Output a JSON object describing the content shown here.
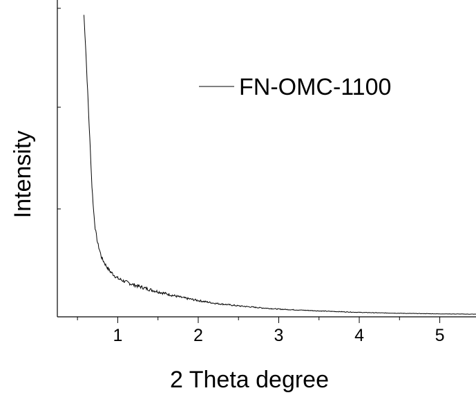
{
  "chart_data": {
    "type": "line",
    "xlabel": "2 Theta degree",
    "ylabel": "Intensity",
    "xlim": [
      0.25,
      5.45
    ],
    "ylim": [
      0,
      1
    ],
    "x_ticks": [
      1,
      2,
      3,
      4,
      5
    ],
    "x_minor_ticks": [
      0.5,
      1.5,
      2.5,
      3.5,
      4.5
    ],
    "y_tick_labels_shown": false,
    "grid": false,
    "legend_position": "top-right",
    "series": [
      {
        "name": "FN-OMC-1100",
        "color": "#000000",
        "x": [
          0.58,
          0.6,
          0.62,
          0.64,
          0.66,
          0.68,
          0.7,
          0.72,
          0.75,
          0.78,
          0.8,
          0.85,
          0.9,
          0.95,
          1.0,
          1.1,
          1.2,
          1.3,
          1.4,
          1.5,
          1.6,
          1.8,
          2.0,
          2.2,
          2.5,
          2.8,
          3.0,
          3.5,
          4.0,
          4.5,
          5.0,
          5.45
        ],
        "y": [
          1.02,
          0.92,
          0.8,
          0.68,
          0.56,
          0.44,
          0.36,
          0.3,
          0.25,
          0.22,
          0.2,
          0.175,
          0.155,
          0.142,
          0.13,
          0.118,
          0.108,
          0.1,
          0.092,
          0.085,
          0.078,
          0.065,
          0.055,
          0.046,
          0.037,
          0.03,
          0.026,
          0.02,
          0.015,
          0.012,
          0.01,
          0.009
        ]
      }
    ]
  }
}
